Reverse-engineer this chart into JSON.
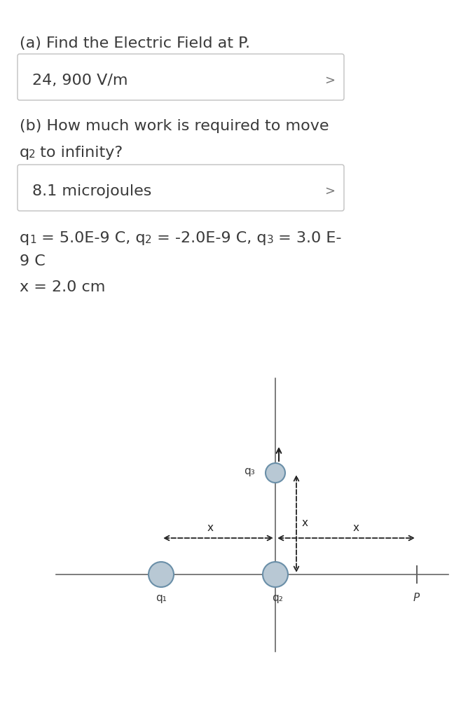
{
  "bg_color": "#ffffff",
  "text_color": "#3a3a3a",
  "box_edge_color": "#c0c0c0",
  "circle_face": "#b8c8d4",
  "circle_edge": "#6a8fa8",
  "line_color": "#666666",
  "dashed_color": "#222222",
  "part_a_label": "(a) Find the Electric Field at P.",
  "answer_a": "24, 900 V/m",
  "part_b_line1": "(b) How much work is required to move",
  "answer_b": "8.1 microjoules",
  "param_line2": "9 C",
  "x_eq": "x = 2.0 cm",
  "chevron": "∨",
  "text_fontsize": 16,
  "small_fontsize": 13,
  "sub_fontsize": 11,
  "diag_label_fontsize": 11
}
